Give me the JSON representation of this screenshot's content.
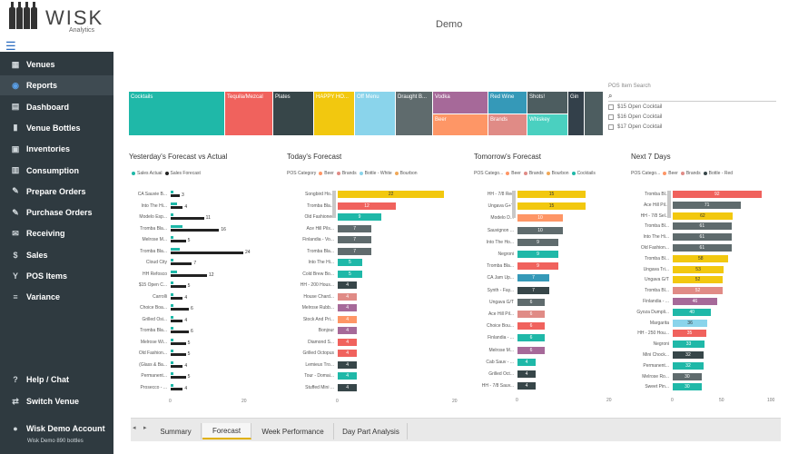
{
  "brand": {
    "name": "WISK",
    "sub": "Analytics"
  },
  "page_title": "Demo",
  "sidebar": {
    "items": [
      {
        "label": "Venues",
        "icon": "venues-icon",
        "glyph": "▦"
      },
      {
        "label": "Reports",
        "icon": "reports-icon",
        "glyph": "◉"
      },
      {
        "label": "Dashboard",
        "icon": "dashboard-icon",
        "glyph": "▤"
      },
      {
        "label": "Venue Bottles",
        "icon": "bottle-icon",
        "glyph": "▮"
      },
      {
        "label": "Inventories",
        "icon": "inventories-icon",
        "glyph": "▣"
      },
      {
        "label": "Consumption",
        "icon": "consumption-icon",
        "glyph": "▥"
      },
      {
        "label": "Prepare Orders",
        "icon": "prepare-orders-icon",
        "glyph": "✎"
      },
      {
        "label": "Purchase Orders",
        "icon": "purchase-orders-icon",
        "glyph": "✎"
      },
      {
        "label": "Receiving",
        "icon": "receiving-icon",
        "glyph": "✉"
      },
      {
        "label": "Sales",
        "icon": "sales-icon",
        "glyph": "$"
      },
      {
        "label": "POS Items",
        "icon": "cocktail-icon",
        "glyph": "Y"
      },
      {
        "label": "Variance",
        "icon": "variance-icon",
        "glyph": "≡"
      }
    ],
    "help": "Help / Chat",
    "switch": "Switch Venue",
    "account": "Wisk Demo Account",
    "account_sub": "Wisk Demo 890 bottles"
  },
  "treemap": [
    {
      "label": "Cocktails",
      "color": "#1fb8a8"
    },
    {
      "label": "Tequila/Mezcal",
      "color": "#f0625d"
    },
    {
      "label": "Plates",
      "color": "#374649"
    },
    {
      "label": "HAPPY HO...",
      "color": "#f2c80f"
    },
    {
      "label": "Off Menu",
      "color": "#8ad4eb"
    },
    {
      "label": "Draught B...",
      "color": "#5f6b6d"
    },
    {
      "label": "Vodka",
      "color": "#a66999"
    },
    {
      "label": "Beer",
      "color": "#fe9666"
    },
    {
      "label": "Red Wine",
      "color": "#3599b8"
    },
    {
      "label": "Brands",
      "color": "#e08b86"
    },
    {
      "label": "Shots!",
      "color": "#4d5d60"
    },
    {
      "label": "Whiskey",
      "color": "#4ad0c0"
    },
    {
      "label": "Gin",
      "color": "#33404a"
    }
  ],
  "pos_search": {
    "label": "POS Item Search",
    "options": [
      "$15 Open Cocktail",
      "$16 Open Cocktail",
      "$17 Open Cocktail"
    ]
  },
  "charts": {
    "yesterday": {
      "title": "Yesterday's Forecast vs Actual",
      "legend": [
        {
          "label": "Sales Actual",
          "color": "#1fb8a8"
        },
        {
          "label": "Sales Forecast",
          "color": "#222"
        }
      ],
      "categories": [
        "CA Sauvie B...",
        "Into The Hi...",
        "Modelo Esp...",
        "Tromba Bla...",
        "Melrose M...",
        "Tromba Bla...",
        "Cloud City",
        "HH Refosco",
        "$15 Open C...",
        "Carrolli",
        "Choice Boa...",
        "Grilled Osi...",
        "Tromba Bla...",
        "Melrose Wi...",
        "Old Fashion...",
        "(Glass & Ba...",
        "Permanent...",
        "Prosecco - ..."
      ],
      "actual": [
        1,
        2,
        1,
        4,
        1,
        3,
        1,
        2,
        1,
        1,
        1,
        1,
        1,
        1,
        1,
        1,
        1,
        1
      ],
      "forecast": [
        3,
        4,
        11,
        16,
        5,
        24,
        7,
        12,
        5,
        4,
        6,
        4,
        6,
        5,
        5,
        4,
        5,
        4
      ],
      "ticks": [
        "0",
        "20"
      ],
      "max": 24
    },
    "today": {
      "title": "Today's Forecast",
      "legend_label": "POS Category",
      "legend": [
        {
          "label": "Beer",
          "color": "#fe9666"
        },
        {
          "label": "Brands",
          "color": "#e08b86"
        },
        {
          "label": "Bottle - White",
          "color": "#8ad4eb"
        },
        {
          "label": "Bourbon",
          "color": "#f0a858"
        }
      ],
      "categories": [
        "Songbird Ho...",
        "Tromba Bla...",
        "Old Fashioned",
        "Ace Hill Pils...",
        "Finlandia - Vo...",
        "Tromba Bla...",
        "Into The Hi...",
        "Cold Brew Bo...",
        "HH - 200 Hous...",
        "House Chard...",
        "Melrose Rubb...",
        "Stock And Pri...",
        "Bonjour",
        "Diamond S...",
        "Grilled Octopus",
        "Lemieux Tro...",
        "Tour - Domai...",
        "Stuffed Mini ..."
      ],
      "values": [
        22,
        12,
        9,
        7,
        7,
        7,
        5,
        5,
        4,
        4,
        4,
        4,
        4,
        4,
        4,
        4,
        4,
        4
      ],
      "colors": [
        "#f2c80f",
        "#f0625d",
        "#1fb8a8",
        "#5f6b6d",
        "#5f6b6d",
        "#5f6b6d",
        "#1fb8a8",
        "#1fb8a8",
        "#374649",
        "#e08b86",
        "#a66999",
        "#fe9666",
        "#a66999",
        "#f0625d",
        "#f0625d",
        "#374649",
        "#1fb8a8",
        "#374649"
      ],
      "ticks": [
        "0",
        "20"
      ],
      "max": 24
    },
    "tomorrow": {
      "title": "Tomorrow's Forecast",
      "legend_label": "POS Catego...",
      "legend": [
        {
          "label": "Beer",
          "color": "#fe9666"
        },
        {
          "label": "Brands",
          "color": "#e08b86"
        },
        {
          "label": "Bourbon",
          "color": "#f0a858"
        },
        {
          "label": "Cocktails",
          "color": "#1fb8a8"
        }
      ],
      "categories": [
        "HH - 7/8 Red",
        "Ungava G+T",
        "Modelo D...",
        "Sauvignon ...",
        "Into The Ho...",
        "Negroni",
        "Tromba Bla...",
        "CA Jam Up...",
        "Synth - Fay...",
        "Ungava G/T",
        "Ace Hill Pil...",
        "Choice Bou...",
        "Finlandia - ...",
        "Melrose M...",
        "Cab Sauv - ...",
        "Grilled Oct...",
        "HH - 7/8 Sauv..."
      ],
      "values": [
        15,
        15,
        10,
        10,
        9,
        9,
        9,
        7,
        7,
        6,
        6,
        6,
        6,
        6,
        4,
        4,
        4
      ],
      "colors": [
        "#f2c80f",
        "#f2c80f",
        "#fe9666",
        "#5f6b6d",
        "#5f6b6d",
        "#1fb8a8",
        "#f0625d",
        "#3599b8",
        "#374649",
        "#5f6b6d",
        "#e08b86",
        "#f0625d",
        "#1fb8a8",
        "#a66999",
        "#1fb8a8",
        "#374649",
        "#374649"
      ],
      "ticks": [
        "0",
        "20"
      ],
      "max": 20
    },
    "next7": {
      "title": "Next 7 Days",
      "legend_label": "POS Catego...",
      "legend": [
        {
          "label": "Beer",
          "color": "#fe9666"
        },
        {
          "label": "Brands",
          "color": "#e08b86"
        },
        {
          "label": "Bottle - Red",
          "color": "#374649"
        }
      ],
      "categories": [
        "Tromba Bl...",
        "Ace Hill Pil...",
        "HH - 7/8 Sel...",
        "Tromba Bl...",
        "Into The Hi...",
        "Old Fashion...",
        "Tromba Bl...",
        "Ungava Tri...",
        "Ungava G/T",
        "Tromba Bl...",
        "Finlandia - ...",
        "Gyoza Dumpli...",
        "Margarita",
        "HH - 250 Hou...",
        "Negroni",
        "Mini Chock...",
        "Permanent...",
        "Melrose Ro...",
        "Sweet Pin..."
      ],
      "values": [
        92,
        71,
        62,
        61,
        61,
        61,
        58,
        53,
        52,
        52,
        46,
        40,
        36,
        35,
        33,
        32,
        32,
        30,
        30
      ],
      "colors": [
        "#f0625d",
        "#5f6b6d",
        "#f2c80f",
        "#5f6b6d",
        "#5f6b6d",
        "#5f6b6d",
        "#f2c80f",
        "#f2c80f",
        "#f2c80f",
        "#e08b86",
        "#a66999",
        "#1fb8a8",
        "#8ad4eb",
        "#f0625d",
        "#1fb8a8",
        "#374649",
        "#1fb8a8",
        "#5f6b6d",
        "#1fb8a8"
      ],
      "ticks": [
        "0",
        "50",
        "100"
      ],
      "max": 100
    }
  },
  "tabs": [
    {
      "label": "Summary"
    },
    {
      "label": "Forecast"
    },
    {
      "label": "Week Performance"
    },
    {
      "label": "Day Part Analysis"
    }
  ]
}
